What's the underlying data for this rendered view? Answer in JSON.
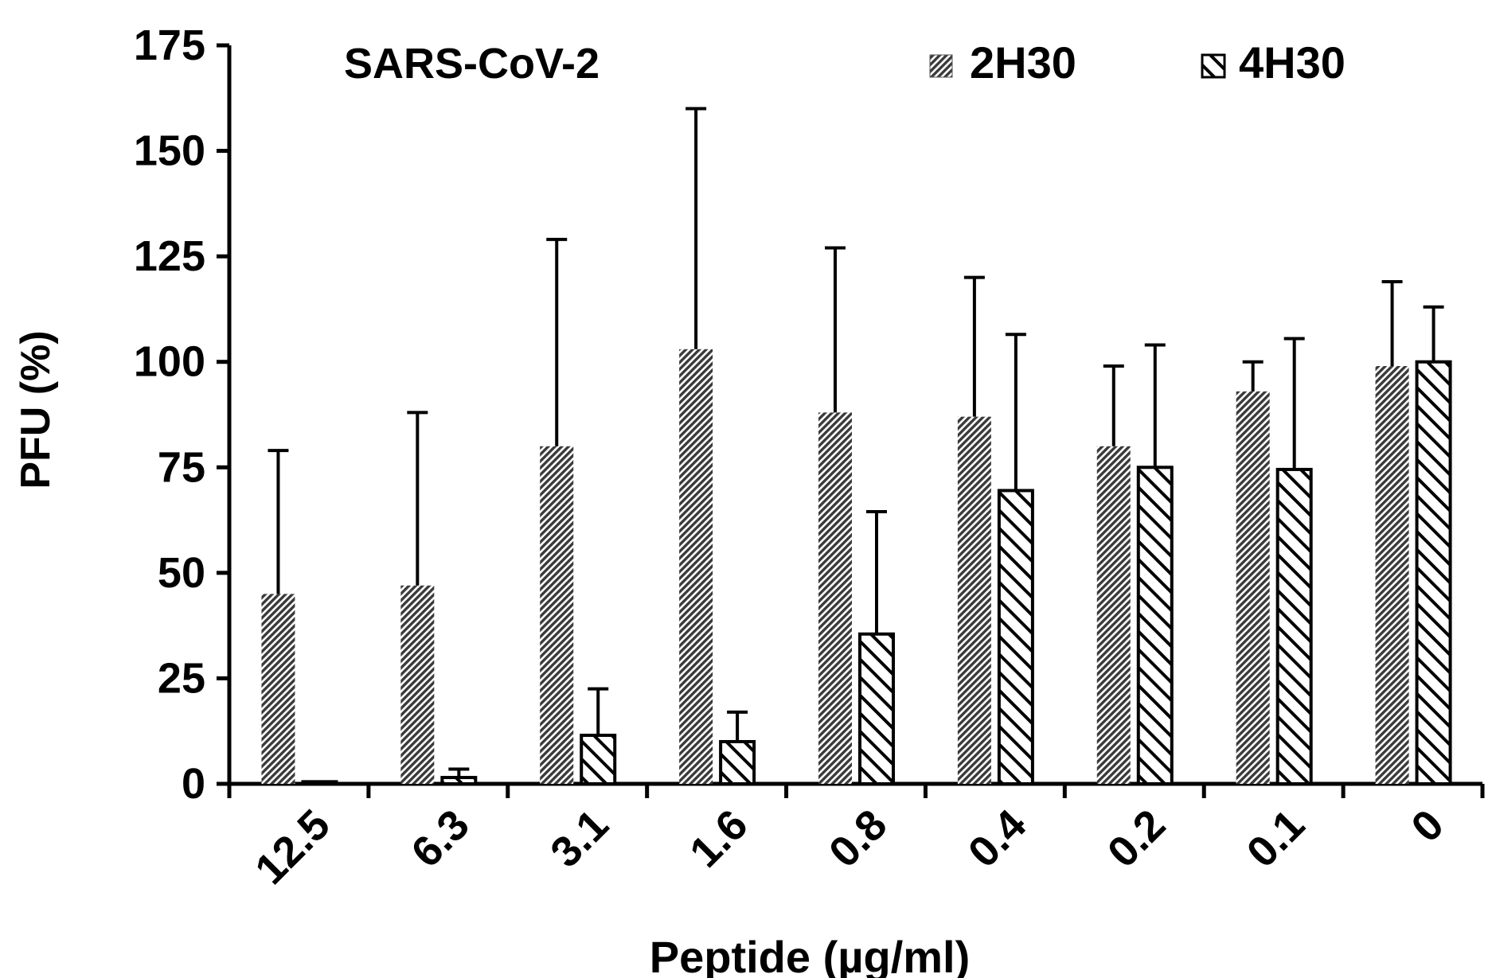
{
  "chart_data": {
    "type": "bar",
    "title": "SARS-CoV-2",
    "xlabel": "Peptide (µg/ml)",
    "ylabel": "PFU (%)",
    "ylim": [
      0,
      175
    ],
    "yticks": [
      0,
      25,
      50,
      75,
      100,
      125,
      150,
      175
    ],
    "categories": [
      "12.5",
      "6.3",
      "3.1",
      "1.6",
      "0.8",
      "0.4",
      "0.2",
      "0.1",
      "0"
    ],
    "series": [
      {
        "name": "2H30",
        "pattern": "dense-diagonal",
        "values": [
          45,
          47,
          80,
          103,
          88,
          87,
          80,
          93,
          99
        ],
        "error": [
          34,
          41,
          49,
          57,
          39,
          33,
          19,
          7,
          20
        ]
      },
      {
        "name": "4H30",
        "pattern": "sparse-diagonal",
        "values": [
          0.5,
          1.5,
          11.5,
          10,
          35.5,
          69.5,
          75,
          74.5,
          100
        ],
        "error": [
          0,
          2,
          11,
          7,
          29,
          37,
          29,
          31,
          13
        ]
      }
    ],
    "legend_position": "top-right",
    "grid": false
  }
}
